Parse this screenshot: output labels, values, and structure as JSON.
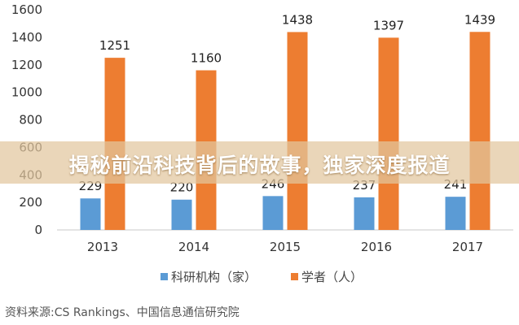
{
  "chart_data": {
    "type": "bar",
    "categories": [
      "2013",
      "2014",
      "2015",
      "2016",
      "2017"
    ],
    "series": [
      {
        "name": "科研机构（家）",
        "color": "#5b9bd5",
        "values": [
          229,
          220,
          246,
          237,
          241
        ]
      },
      {
        "name": "学者（人）",
        "color": "#ed7d31",
        "values": [
          1251,
          1160,
          1438,
          1397,
          1439
        ]
      }
    ],
    "ylim": [
      0,
      1600
    ],
    "yticks": [
      "0",
      "200",
      "400",
      "600",
      "800",
      "1000",
      "1200",
      "1400",
      "1600"
    ],
    "grid": false,
    "legend_position": "bottom"
  },
  "banner": {
    "text": "揭秘前沿科技背后的故事，独家深度报道"
  },
  "source": {
    "text": "资料来源:CS Rankings、中国信息通信研究院"
  }
}
